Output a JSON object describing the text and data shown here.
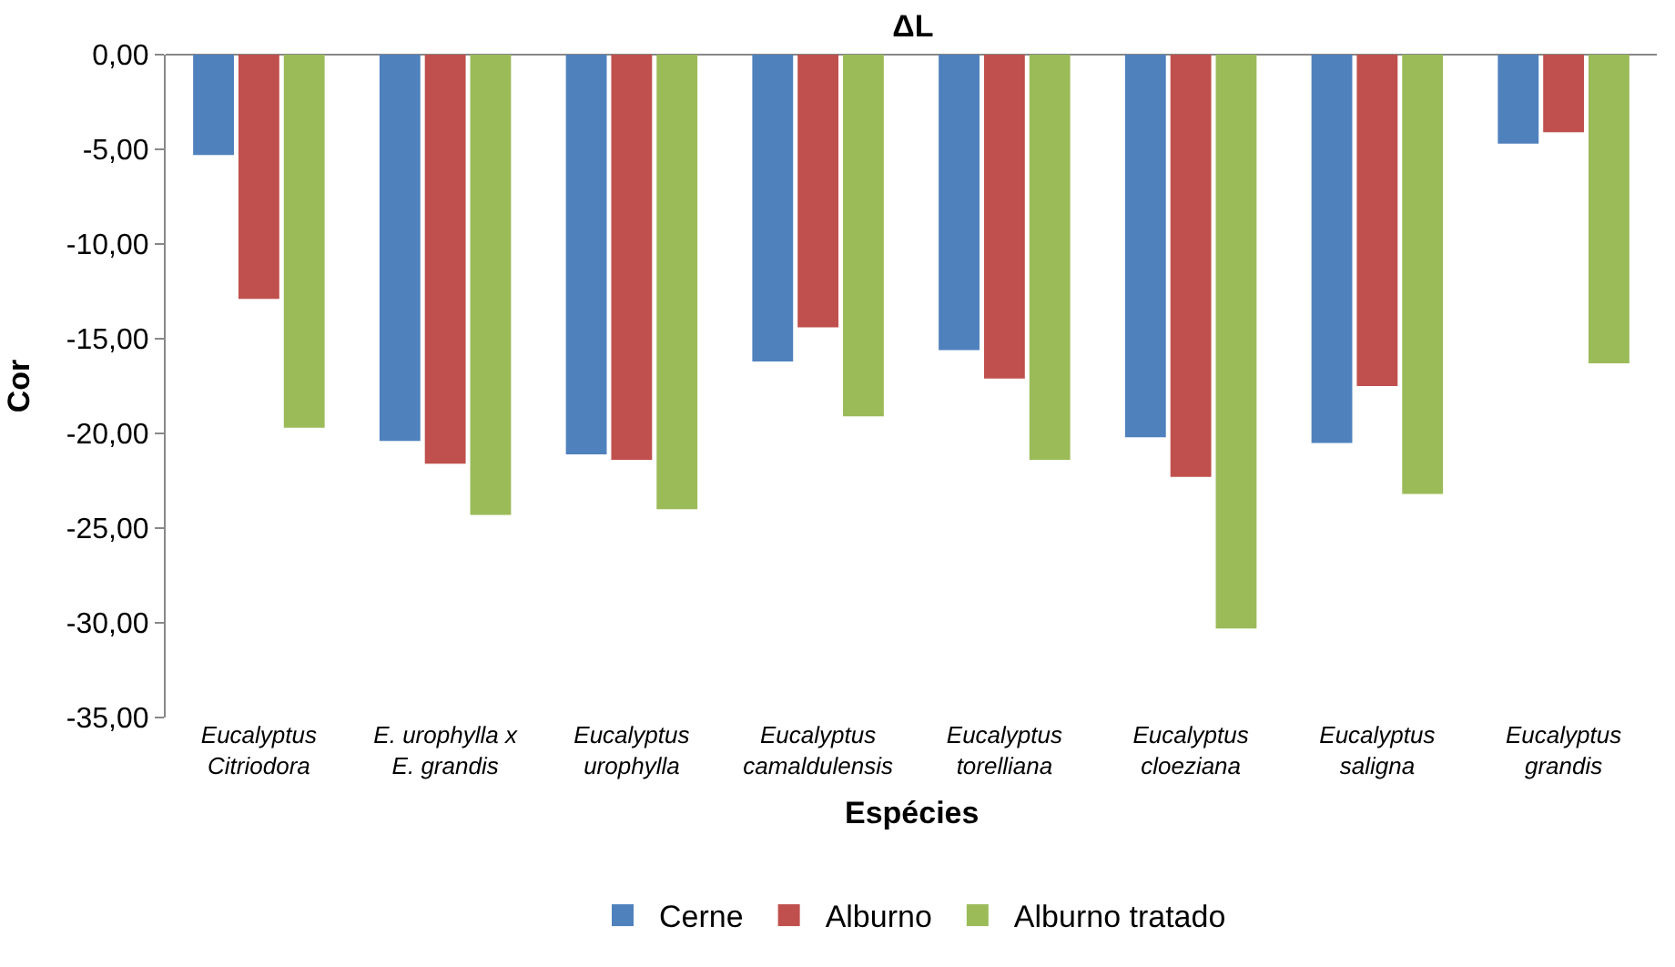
{
  "chart_data": {
    "type": "bar",
    "title": "ΔL",
    "xlabel": "Espécies",
    "ylabel": "Cor",
    "categories": [
      "Eucalyptus\nCitriodora",
      "E. urophylla x\nE. grandis",
      "Eucalyptus\nurophylla",
      "Eucalyptus\ncamaldulensis",
      "Eucalyptus\ntorelliana",
      "Eucalyptus\ncloeziana",
      "Eucalyptus\nsaligna",
      "Eucalyptus\ngrandis"
    ],
    "series": [
      {
        "name": "Cerne",
        "color": "#4f81bd",
        "values": [
          -5.3,
          -20.4,
          -21.1,
          -16.2,
          -15.6,
          -20.2,
          -20.5,
          -4.7
        ]
      },
      {
        "name": "Alburno",
        "color": "#c0504d",
        "values": [
          -12.9,
          -21.6,
          -21.4,
          -14.4,
          -17.1,
          -22.3,
          -17.5,
          -4.1
        ]
      },
      {
        "name": "Alburno tratado",
        "color": "#9bbb59",
        "values": [
          -19.7,
          -24.3,
          -24.0,
          -19.1,
          -21.4,
          -30.3,
          -23.2,
          -16.3
        ]
      }
    ],
    "ylim": [
      -35,
      0
    ],
    "yticks": [
      {
        "value": 0,
        "label": "0,00"
      },
      {
        "value": -5,
        "label": "-5,00"
      },
      {
        "value": -10,
        "label": "-10,00"
      },
      {
        "value": -15,
        "label": "-15,00"
      },
      {
        "value": -20,
        "label": "-20,00"
      },
      {
        "value": -25,
        "label": "-25,00"
      },
      {
        "value": -30,
        "label": "-30,00"
      },
      {
        "value": -35,
        "label": "-35,00"
      }
    ],
    "legend": "bottom"
  }
}
